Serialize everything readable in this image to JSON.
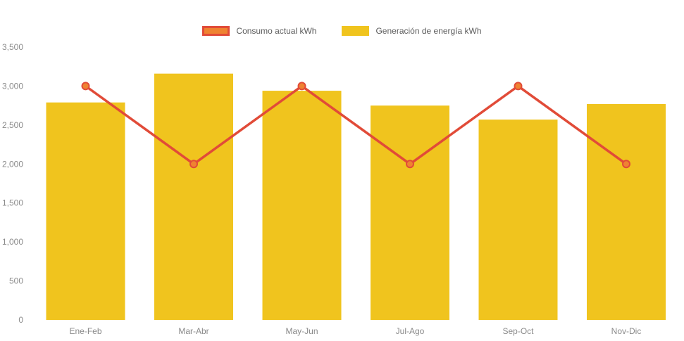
{
  "chart_data": {
    "type": "bar",
    "title": "",
    "xlabel": "",
    "ylabel": "",
    "categories": [
      "Ene-Feb",
      "Mar-Abr",
      "May-Jun",
      "Jul-Ago",
      "Sep-Oct",
      "Nov-Dic"
    ],
    "series": [
      {
        "name": "Consumo actual kWh",
        "type": "line",
        "values": [
          3000,
          2000,
          3000,
          2000,
          3000,
          2000
        ],
        "color": "#e14b38",
        "marker_fill": "#ef8331"
      },
      {
        "name": "Generación de energía kWh",
        "type": "bar",
        "values": [
          2790,
          3160,
          2940,
          2750,
          2570,
          2770
        ],
        "color": "#f0c41e"
      }
    ],
    "ylim": [
      0,
      3500
    ],
    "ytick_step": 500,
    "ytick_labels": [
      "0",
      "500",
      "1,000",
      "1,500",
      "2,000",
      "2,500",
      "3,000",
      "3,500"
    ],
    "grid": false,
    "legend_position": "top"
  },
  "legend": {
    "items": [
      {
        "label": "Consumo actual kWh",
        "fill": "#ef8331",
        "border": "#e14b38"
      },
      {
        "label": "Generación de energía kWh",
        "fill": "#f0c41e",
        "border": "#f0c41e"
      }
    ]
  }
}
